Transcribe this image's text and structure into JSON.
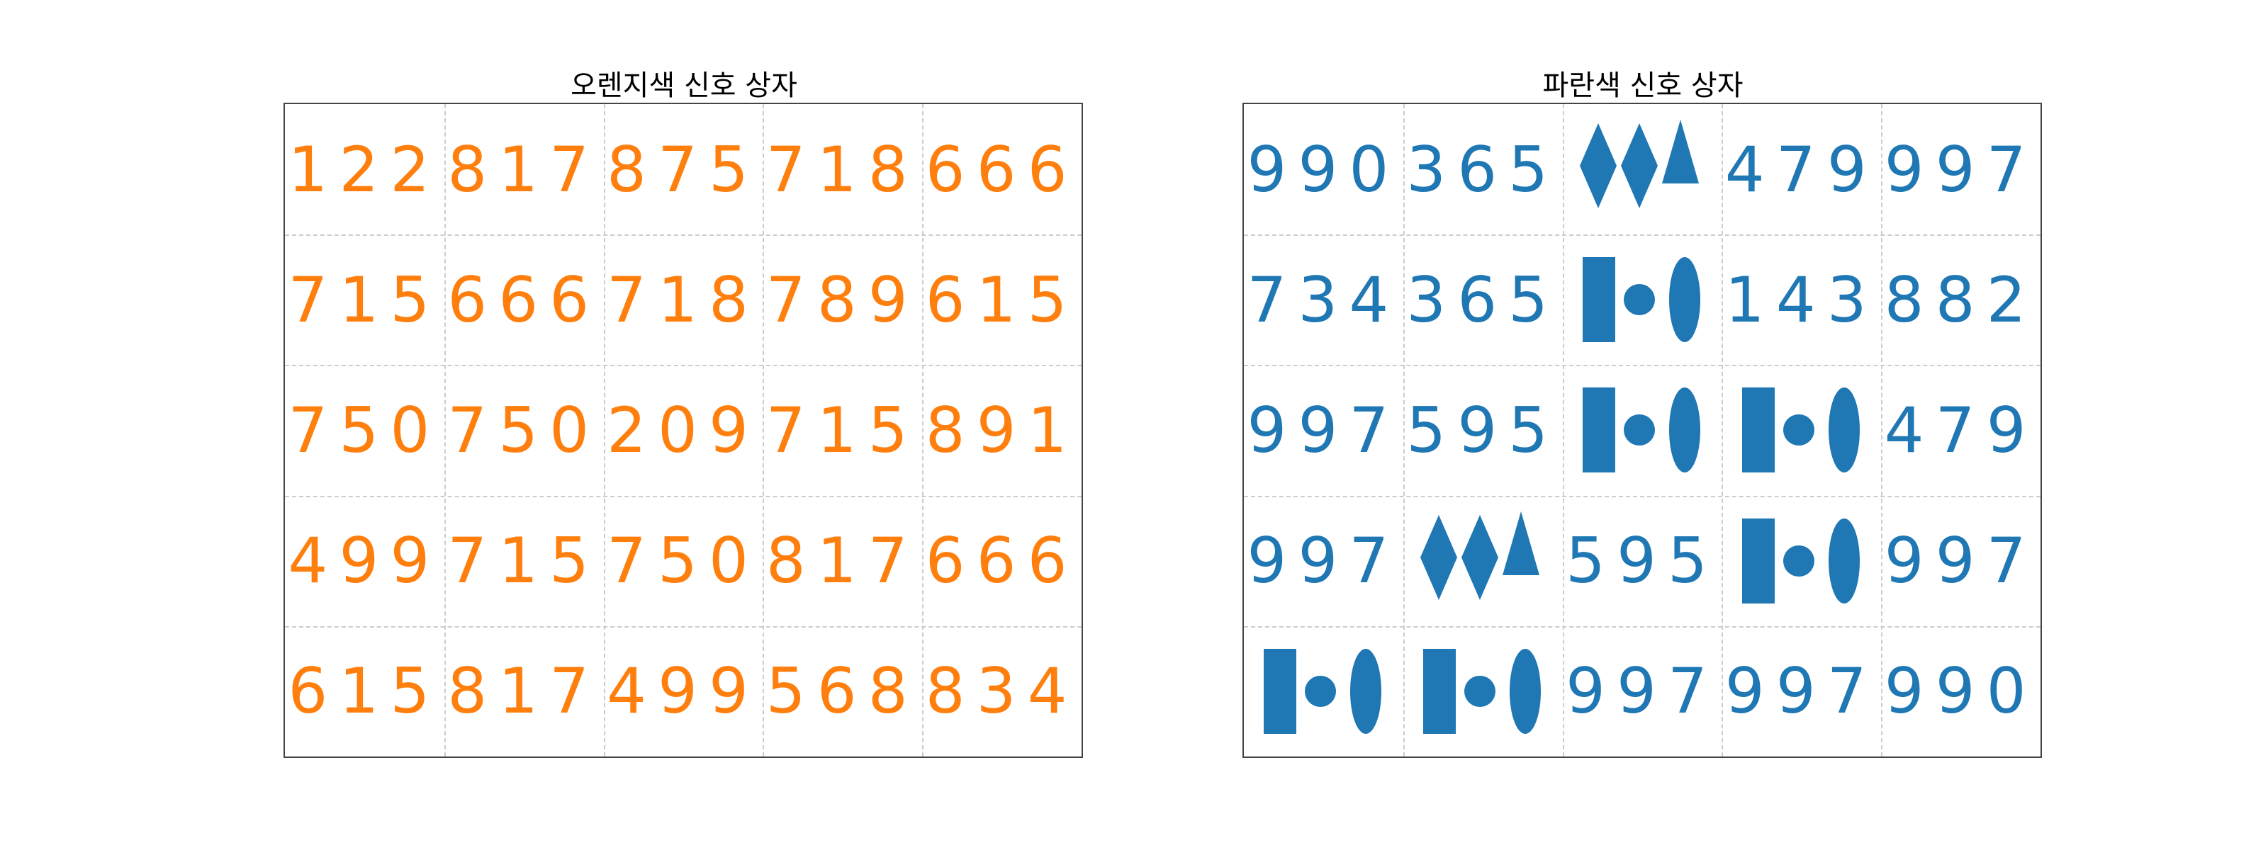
{
  "colors": {
    "orange": "#ff7f0e",
    "blue": "#1f77b4"
  },
  "left_panel": {
    "title": "오렌지색 신호 상자",
    "color": "#ff7f0e",
    "rows": [
      [
        {
          "t": "text",
          "v": "122"
        },
        {
          "t": "text",
          "v": "817"
        },
        {
          "t": "text",
          "v": "875"
        },
        {
          "t": "text",
          "v": "718"
        },
        {
          "t": "text",
          "v": "666"
        }
      ],
      [
        {
          "t": "text",
          "v": "715"
        },
        {
          "t": "text",
          "v": "666"
        },
        {
          "t": "text",
          "v": "718"
        },
        {
          "t": "text",
          "v": "789"
        },
        {
          "t": "text",
          "v": "615"
        }
      ],
      [
        {
          "t": "text",
          "v": "750"
        },
        {
          "t": "text",
          "v": "750"
        },
        {
          "t": "text",
          "v": "209"
        },
        {
          "t": "text",
          "v": "715"
        },
        {
          "t": "text",
          "v": "891"
        }
      ],
      [
        {
          "t": "text",
          "v": "499"
        },
        {
          "t": "text",
          "v": "715"
        },
        {
          "t": "text",
          "v": "750"
        },
        {
          "t": "text",
          "v": "817"
        },
        {
          "t": "text",
          "v": "666"
        }
      ],
      [
        {
          "t": "text",
          "v": "615"
        },
        {
          "t": "text",
          "v": "817"
        },
        {
          "t": "text",
          "v": "499"
        },
        {
          "t": "text",
          "v": "568"
        },
        {
          "t": "text",
          "v": "834"
        }
      ]
    ]
  },
  "right_panel": {
    "title": "파란색 신호 상자",
    "color": "#1f77b4",
    "rows": [
      [
        {
          "t": "text",
          "v": "990"
        },
        {
          "t": "text",
          "v": "365"
        },
        {
          "t": "icon",
          "v": "diamond-diamond-triangle-icon"
        },
        {
          "t": "text",
          "v": "479"
        },
        {
          "t": "text",
          "v": "997"
        }
      ],
      [
        {
          "t": "text",
          "v": "734"
        },
        {
          "t": "text",
          "v": "365"
        },
        {
          "t": "icon",
          "v": "rect-circle-ellipse-icon"
        },
        {
          "t": "text",
          "v": "143"
        },
        {
          "t": "text",
          "v": "882"
        }
      ],
      [
        {
          "t": "text",
          "v": "997"
        },
        {
          "t": "text",
          "v": "595"
        },
        {
          "t": "icon",
          "v": "rect-circle-ellipse-icon"
        },
        {
          "t": "icon",
          "v": "rect-circle-ellipse-icon"
        },
        {
          "t": "text",
          "v": "479"
        }
      ],
      [
        {
          "t": "text",
          "v": "997"
        },
        {
          "t": "icon",
          "v": "diamond-diamond-triangle-icon"
        },
        {
          "t": "text",
          "v": "595"
        },
        {
          "t": "icon",
          "v": "rect-circle-ellipse-icon"
        },
        {
          "t": "text",
          "v": "997"
        }
      ],
      [
        {
          "t": "icon",
          "v": "rect-circle-ellipse-icon"
        },
        {
          "t": "icon",
          "v": "rect-circle-ellipse-icon"
        },
        {
          "t": "text",
          "v": "997"
        },
        {
          "t": "text",
          "v": "997"
        },
        {
          "t": "text",
          "v": "990"
        }
      ]
    ]
  }
}
